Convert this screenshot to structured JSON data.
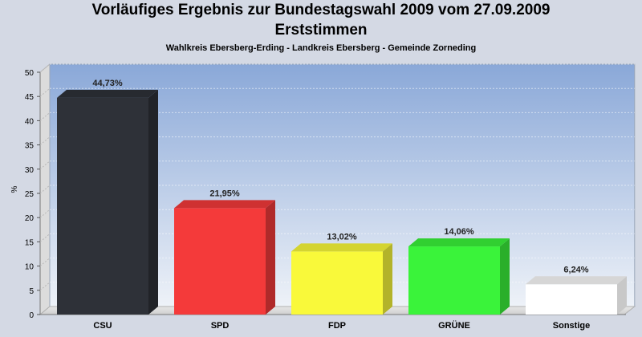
{
  "chart_data": {
    "type": "bar",
    "title": "Vorläufiges Ergebnis zur Bundestagswahl 2009 vom 27.09.2009",
    "subtitle": "Erststimmen",
    "caption": "Wahlkreis Ebersberg-Erding - Landkreis Ebersberg - Gemeinde Zorneding",
    "ylabel": "%",
    "ylim": [
      0,
      50
    ],
    "yticks": [
      0,
      5,
      10,
      15,
      20,
      25,
      30,
      35,
      40,
      45,
      50
    ],
    "categories": [
      "CSU",
      "SPD",
      "FDP",
      "GRÜNE",
      "Sonstige"
    ],
    "values": [
      44.73,
      21.95,
      13.02,
      14.06,
      6.24
    ],
    "value_labels": [
      "44,73%",
      "21,95%",
      "13,02%",
      "14,06%",
      "6,24%"
    ],
    "colors": [
      "#2e3138",
      "#f43a3a",
      "#f9f93a",
      "#3af33a",
      "#ffffff"
    ],
    "grid": true
  }
}
